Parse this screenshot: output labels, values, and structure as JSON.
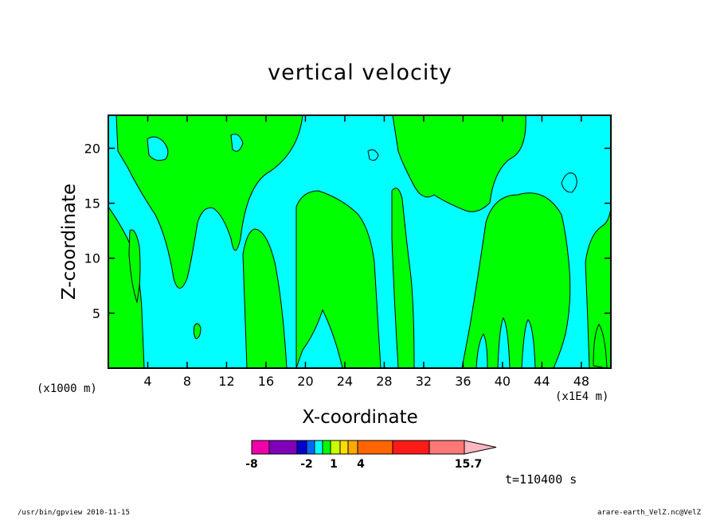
{
  "chart_data": {
    "type": "heatmap",
    "title": "vertical velocity",
    "xlabel": "X-coordinate",
    "ylabel": "Z-coordinate",
    "x_unit_left": "(x1000 m)",
    "x_unit_right": "(x1E4 m)",
    "x_ticks": [
      4,
      8,
      12,
      16,
      20,
      24,
      28,
      32,
      36,
      40,
      44,
      48
    ],
    "y_ticks": [
      5,
      10,
      15,
      20
    ],
    "xlim": [
      0,
      51
    ],
    "ylim": [
      0,
      23
    ],
    "time_label": "t=110400 s",
    "regions": [
      {
        "name": "positive",
        "color": "#00ff00",
        "x": [
          [
            0,
            4.5
          ],
          [
            8.7,
            10.3
          ],
          [
            14,
            19.5
          ],
          [
            21,
            28
          ],
          [
            29.8,
            30.5
          ],
          [
            36.5,
            47.3
          ],
          [
            48.5,
            51
          ]
        ],
        "top": [
          [
            0,
            21.5
          ],
          [
            10.3,
            14.5
          ],
          [
            19.5,
            21
          ],
          [
            28,
            22.5
          ],
          [
            30.5,
            16
          ],
          [
            47.3,
            15
          ],
          [
            51,
            14
          ]
        ]
      },
      {
        "name": "negative",
        "color": "#00ffff"
      }
    ],
    "colorbar": {
      "colors": [
        "#ee00aa",
        "#8000ba",
        "#0000cc",
        "#0066ff",
        "#00ffff",
        "#00ff00",
        "#ccff00",
        "#ffdd00",
        "#ffaa00",
        "#ff6600",
        "#ff1a1a",
        "#ff7777",
        "#ffb6c1"
      ],
      "tick_labels": [
        {
          "value": -8,
          "label": "-8"
        },
        {
          "value": -2,
          "label": "-2"
        },
        {
          "value": 1,
          "label": "1"
        },
        {
          "value": 4,
          "label": "4"
        },
        {
          "value": 15.7,
          "label": "15.7"
        }
      ]
    }
  },
  "footer": {
    "left": "/usr/bin/gpview   2010-11-15",
    "right": "arare-earth_VelZ.nc@VelZ"
  }
}
